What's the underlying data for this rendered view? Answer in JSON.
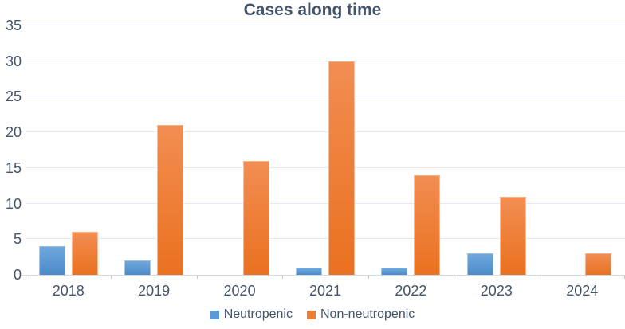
{
  "chart_data": {
    "type": "bar",
    "title": "Cases along time",
    "categories": [
      "2018",
      "2019",
      "2020",
      "2021",
      "2022",
      "2023",
      "2024"
    ],
    "series": [
      {
        "name": "Neutropenic",
        "color": "#5B9BD5",
        "values": [
          4,
          2,
          0,
          1,
          1,
          3,
          0
        ]
      },
      {
        "name": "Non-neutropenic",
        "color": "#ED7D31",
        "values": [
          6,
          21,
          16,
          30,
          14,
          11,
          3
        ]
      }
    ],
    "xlabel": "",
    "ylabel": "",
    "ylim": [
      0,
      35
    ],
    "yticks": [
      0,
      5,
      10,
      15,
      20,
      25,
      30,
      35
    ],
    "grid": true,
    "legend_position": "bottom",
    "colors": {
      "text": "#44546A",
      "gridline": "#E6E9F0",
      "axis_line": "#D5D9E2"
    }
  }
}
